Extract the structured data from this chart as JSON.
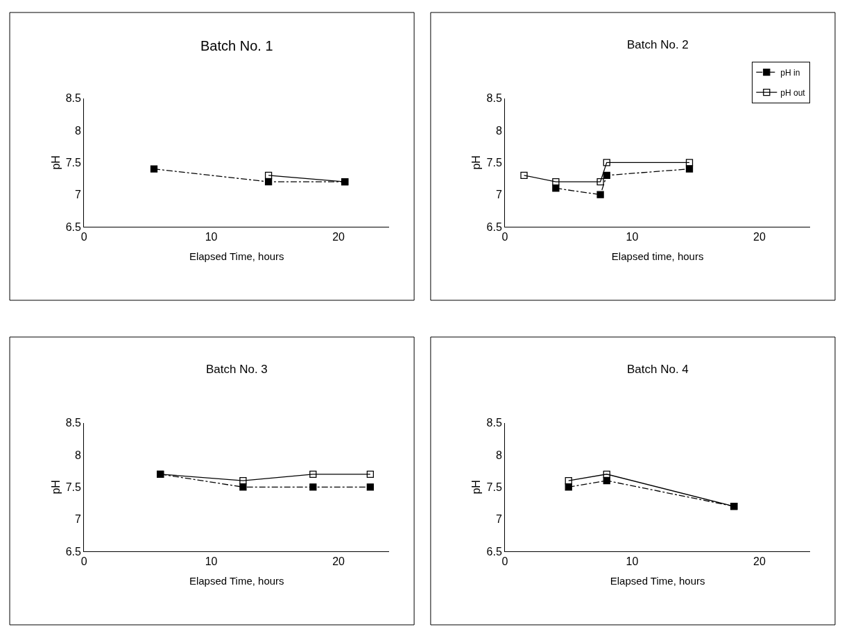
{
  "chart_data": [
    {
      "type": "line",
      "title": "Batch No. 1",
      "xlabel": "Elapsed Time, hours",
      "ylabel": "pH",
      "xlim": [
        0,
        24
      ],
      "xticks": [
        0,
        10,
        20
      ],
      "ylim": [
        6.5,
        8.5
      ],
      "yticks": [
        6.5,
        7,
        7.5,
        8,
        8.5
      ],
      "series": [
        {
          "color": "#000000",
          "marker": "square",
          "line_style": "dashdot",
          "x": [
            5.5,
            14.5,
            20.5
          ],
          "values": [
            7.4,
            7.2,
            7.2
          ]
        },
        {
          "color": "#000000",
          "marker": "square-open",
          "line_style": "solid",
          "x": [
            14.5,
            20.5
          ],
          "values": [
            7.3,
            7.2
          ]
        }
      ]
    },
    {
      "type": "line",
      "title": "Batch No. 2",
      "xlabel": "Elapsed time, hours",
      "ylabel": "pH",
      "xlim": [
        0,
        24
      ],
      "xticks": [
        0,
        10,
        20
      ],
      "ylim": [
        6.5,
        8.5
      ],
      "yticks": [
        6.5,
        7,
        7.5,
        8,
        8.5
      ],
      "legend": "top right",
      "series": [
        {
          "name": "pH in",
          "color": "#000000",
          "marker": "square",
          "line_style": "dashdot",
          "x": [
            4,
            7.5,
            8,
            14.5
          ],
          "values": [
            7.1,
            7.0,
            7.3,
            7.4
          ]
        },
        {
          "name": "pH out",
          "color": "#000000",
          "marker": "square-open",
          "line_style": "solid",
          "x": [
            1.5,
            4,
            7.5,
            8,
            14.5
          ],
          "values": [
            7.3,
            7.2,
            7.2,
            7.5,
            7.5
          ]
        }
      ]
    },
    {
      "type": "line",
      "title": "Batch No. 3",
      "xlabel": "Elapsed Time, hours",
      "ylabel": "pH",
      "xlim": [
        0,
        24
      ],
      "xticks": [
        0,
        10,
        20
      ],
      "ylim": [
        6.5,
        8.5
      ],
      "yticks": [
        6.5,
        7,
        7.5,
        8,
        8.5
      ],
      "series": [
        {
          "color": "#000000",
          "marker": "square",
          "line_style": "dashdot",
          "x": [
            6,
            12.5,
            18,
            22.5
          ],
          "values": [
            7.7,
            7.5,
            7.5,
            7.5
          ]
        },
        {
          "color": "#000000",
          "marker": "square-open",
          "line_style": "solid",
          "x": [
            6,
            12.5,
            18,
            22.5
          ],
          "values": [
            7.7,
            7.6,
            7.7,
            7.7
          ]
        }
      ]
    },
    {
      "type": "line",
      "title": "Batch No. 4",
      "xlabel": "Elapsed Time, hours",
      "ylabel": "pH",
      "xlim": [
        0,
        24
      ],
      "xticks": [
        0,
        10,
        20
      ],
      "ylim": [
        6.5,
        8.5
      ],
      "yticks": [
        6.5,
        7,
        7.5,
        8,
        8.5
      ],
      "series": [
        {
          "color": "#000000",
          "marker": "square",
          "line_style": "dashdot",
          "x": [
            5,
            8,
            18
          ],
          "values": [
            7.5,
            7.6,
            7.2
          ]
        },
        {
          "color": "#000000",
          "marker": "square-open",
          "line_style": "solid",
          "x": [
            5,
            8,
            18
          ],
          "values": [
            7.6,
            7.7,
            7.2
          ]
        }
      ]
    }
  ]
}
